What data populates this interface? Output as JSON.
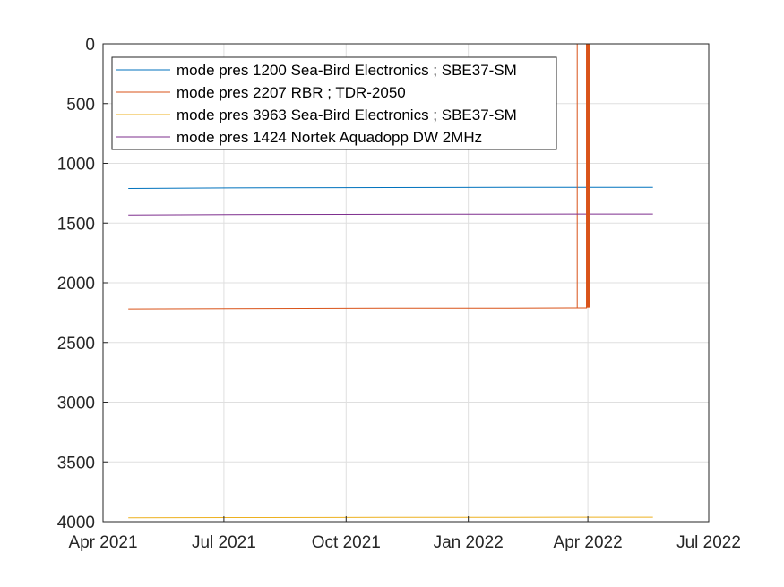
{
  "chart_data": {
    "type": "line",
    "title": "",
    "xlabel": "",
    "ylabel": "",
    "x_axis": {
      "type": "date",
      "range": [
        "2021-04-01",
        "2022-07-01"
      ],
      "ticks": [
        {
          "date": "2021-04-01",
          "label": "Apr 2021"
        },
        {
          "date": "2021-07-01",
          "label": "Jul 2021"
        },
        {
          "date": "2021-10-01",
          "label": "Oct 2021"
        },
        {
          "date": "2022-01-01",
          "label": "Jan 2022"
        },
        {
          "date": "2022-04-01",
          "label": "Apr 2022"
        },
        {
          "date": "2022-07-01",
          "label": "Jul 2022"
        }
      ]
    },
    "y_axis": {
      "range": [
        0,
        4000
      ],
      "reversed": true,
      "ticks": [
        {
          "value": 0,
          "label": "0"
        },
        {
          "value": 500,
          "label": "500"
        },
        {
          "value": 1000,
          "label": "1000"
        },
        {
          "value": 1500,
          "label": "1500"
        },
        {
          "value": 2000,
          "label": "2000"
        },
        {
          "value": 2500,
          "label": "2500"
        },
        {
          "value": 3000,
          "label": "3000"
        },
        {
          "value": 3500,
          "label": "3500"
        },
        {
          "value": 4000,
          "label": "4000"
        }
      ]
    },
    "grid": true,
    "legend_position": "top-left",
    "series": [
      {
        "name": "mode pres 1200 Sea-Bird Electronics ; SBE37-SM",
        "color": "#0072BD",
        "points": [
          [
            "2021-04-20",
            1210
          ],
          [
            "2021-08-01",
            1204
          ],
          [
            "2021-11-01",
            1202
          ],
          [
            "2022-02-01",
            1201
          ],
          [
            "2022-05-20",
            1200
          ]
        ]
      },
      {
        "name": "mode pres 2207 RBR ; TDR-2050",
        "color": "#D95319",
        "points": [
          [
            "2021-04-20",
            2218
          ],
          [
            "2021-08-01",
            2214
          ],
          [
            "2021-11-01",
            2212
          ],
          [
            "2022-02-01",
            2211
          ],
          [
            "2022-03-24",
            2210
          ],
          [
            "2022-03-24",
            0
          ],
          [
            "2022-03-24",
            2210
          ],
          [
            "2022-03-31",
            2210
          ],
          [
            "2022-03-31",
            0
          ],
          [
            "2022-04-01",
            2207
          ],
          [
            "2022-04-01",
            0
          ],
          [
            "2022-04-01",
            2207
          ],
          [
            "2022-04-01",
            0
          ],
          [
            "2022-04-01",
            2207
          ]
        ]
      },
      {
        "name": "mode pres 3963 Sea-Bird Electronics ; SBE37-SM",
        "color": "#EDB120",
        "points": [
          [
            "2021-04-20",
            3968
          ],
          [
            "2021-08-01",
            3966
          ],
          [
            "2021-11-01",
            3965
          ],
          [
            "2022-02-01",
            3964
          ],
          [
            "2022-05-20",
            3963
          ]
        ]
      },
      {
        "name": "mode pres 1424 Nortek Aquadopp DW 2MHz",
        "color": "#7E2F8E",
        "points": [
          [
            "2021-04-20",
            1432
          ],
          [
            "2021-08-01",
            1428
          ],
          [
            "2021-11-01",
            1426
          ],
          [
            "2022-02-01",
            1425
          ],
          [
            "2022-05-20",
            1424
          ]
        ]
      }
    ]
  }
}
